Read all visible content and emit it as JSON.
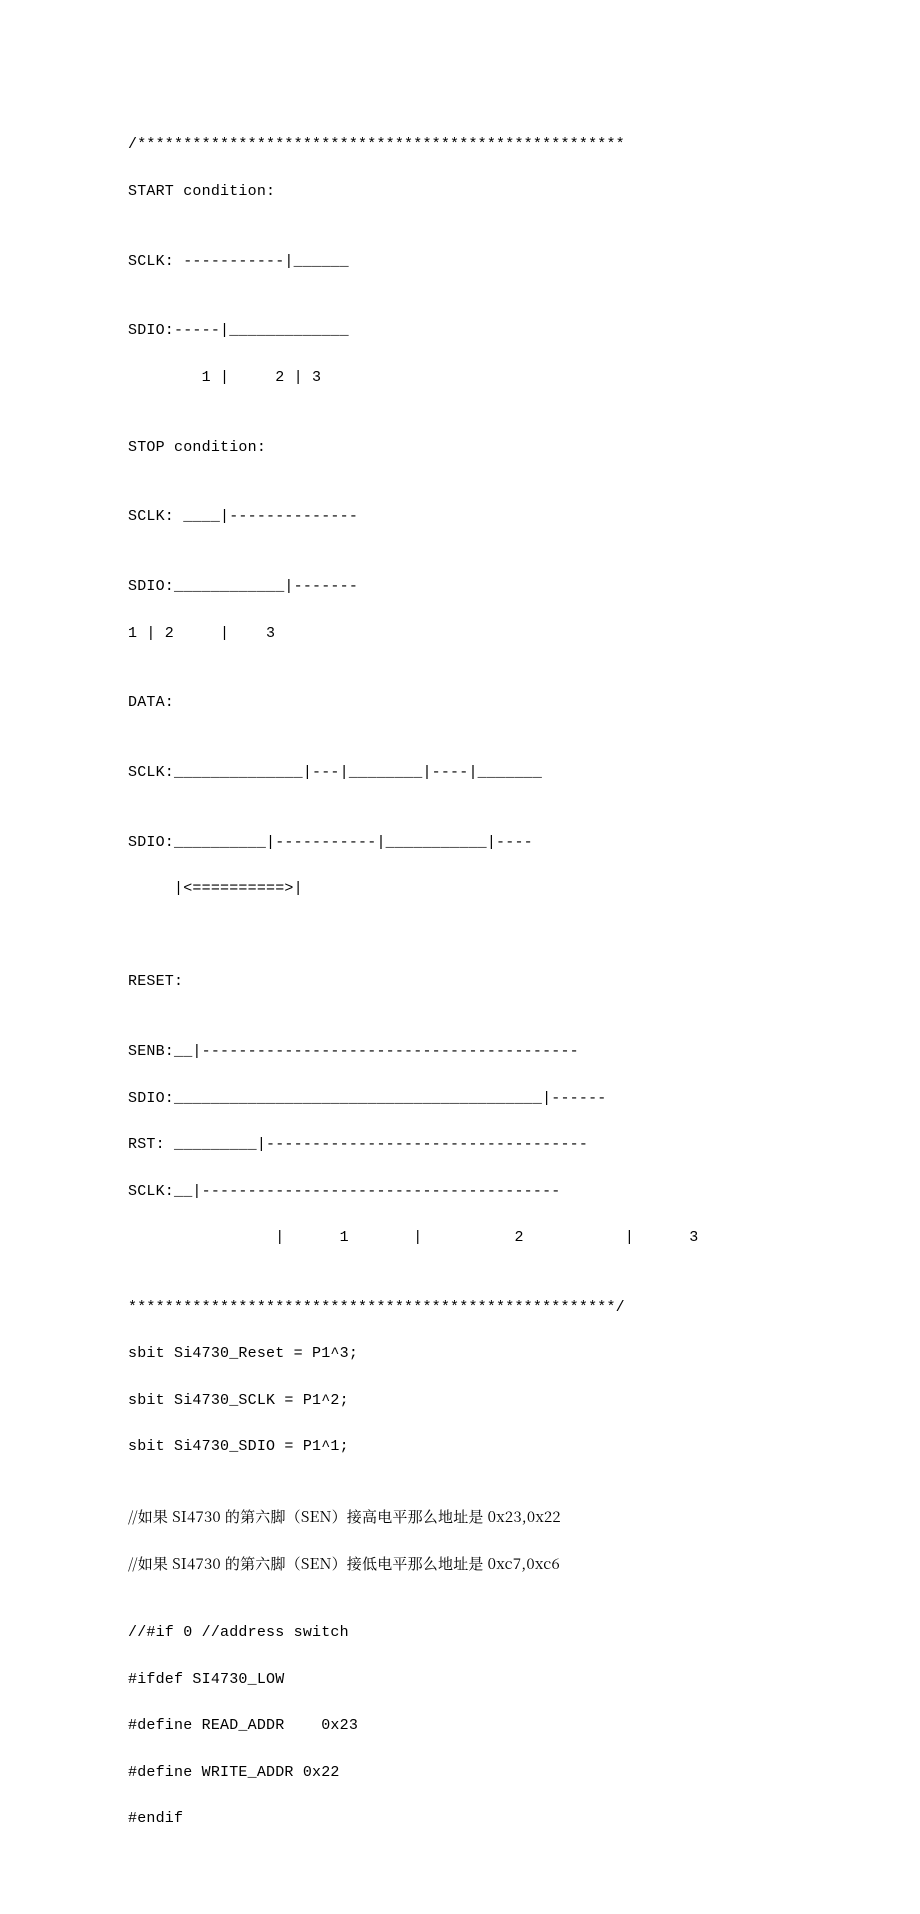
{
  "lines": [
    "/*****************************************************",
    "START condition:",
    "",
    "SCLK: -----------|______",
    "",
    "SDIO:-----|_____________",
    "        1 |     2 | 3",
    "",
    "STOP condition:",
    "",
    "SCLK: ____|--------------",
    "",
    "SDIO:____________|-------",
    "1 | 2     |    3",
    "",
    "DATA:",
    "",
    "SCLK:______________|---|________|----|_______",
    "",
    "SDIO:__________|-----------|___________|----",
    "     |<==========>|",
    "",
    "",
    "RESET:",
    "",
    "SENB:__|-----------------------------------------",
    "SDIO:________________________________________|------",
    "RST: _________|-----------------------------------",
    "SCLK:__|---------------------------------------",
    "                |      1       |          2           |      3",
    "",
    "*****************************************************/",
    "sbit Si4730_Reset = P1^3;",
    "sbit Si4730_SCLK = P1^2;",
    "sbit Si4730_SDIO = P1^1;",
    "",
    "//如果 SI4730 的第六脚（SEN）接高电平那么地址是 0x23,0x22",
    "//如果 SI4730 的第六脚（SEN）接低电平那么地址是 0xc7,0xc6",
    "",
    "//#if 0 //address switch",
    "#ifdef SI4730_LOW",
    "#define READ_ADDR    0x23",
    "#define WRITE_ADDR 0x22",
    "#endif"
  ]
}
